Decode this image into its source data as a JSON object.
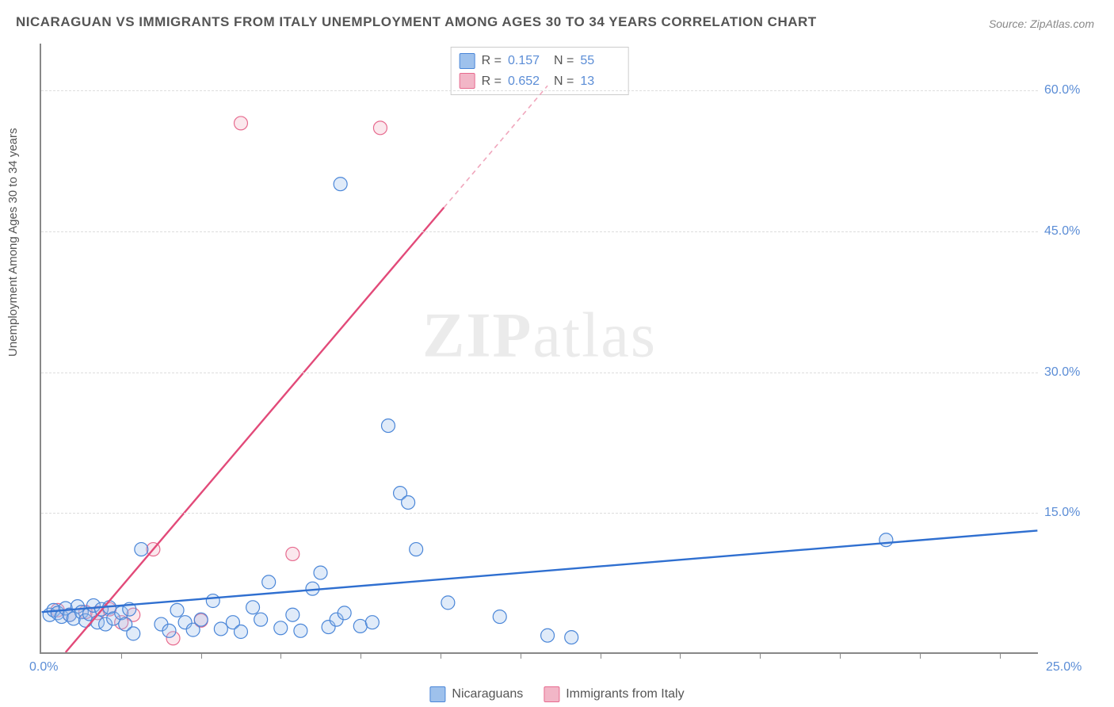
{
  "chart": {
    "type": "scatter",
    "title": "NICARAGUAN VS IMMIGRANTS FROM ITALY UNEMPLOYMENT AMONG AGES 30 TO 34 YEARS CORRELATION CHART",
    "source_label": "Source: ZipAtlas.com",
    "ylabel": "Unemployment Among Ages 30 to 34 years",
    "watermark_bold": "ZIP",
    "watermark_rest": "atlas",
    "background_color": "#ffffff",
    "grid_color": "#dddddd",
    "axis_color": "#888888",
    "xlim": [
      0,
      25
    ],
    "ylim": [
      0,
      65
    ],
    "x_origin_label": "0.0%",
    "x_max_label": "25.0%",
    "xtick_positions": [
      2,
      4,
      6,
      8,
      10,
      12,
      14,
      16,
      18,
      20,
      22,
      24
    ],
    "yticks": [
      {
        "v": 15,
        "label": "15.0%"
      },
      {
        "v": 30,
        "label": "30.0%"
      },
      {
        "v": 45,
        "label": "45.0%"
      },
      {
        "v": 60,
        "label": "60.0%"
      }
    ],
    "marker_radius": 8.5,
    "marker_stroke_width": 1.2,
    "marker_fill_opacity": 0.32,
    "series": {
      "nicaraguans": {
        "label": "Nicaraguans",
        "stat_R_label": "R  =",
        "stat_R_value": "0.157",
        "stat_N_label": "N  =",
        "stat_N_value": "55",
        "color_stroke": "#4a86d8",
        "color_fill": "#9ec1ec",
        "trend": {
          "x1": 0,
          "y1": 4.3,
          "x2": 25,
          "y2": 13.0,
          "width": 2.4,
          "color": "#2f6fd0"
        },
        "points": [
          [
            0.2,
            4.0
          ],
          [
            0.3,
            4.5
          ],
          [
            0.4,
            4.2
          ],
          [
            0.5,
            3.8
          ],
          [
            0.6,
            4.7
          ],
          [
            0.7,
            4.0
          ],
          [
            0.8,
            3.6
          ],
          [
            0.9,
            4.9
          ],
          [
            1.0,
            4.3
          ],
          [
            1.1,
            3.4
          ],
          [
            1.2,
            4.1
          ],
          [
            1.3,
            5.0
          ],
          [
            1.4,
            3.2
          ],
          [
            1.5,
            4.6
          ],
          [
            1.6,
            3.0
          ],
          [
            1.7,
            4.8
          ],
          [
            1.8,
            3.6
          ],
          [
            2.0,
            4.2
          ],
          [
            2.1,
            3.0
          ],
          [
            2.2,
            4.6
          ],
          [
            2.3,
            2.0
          ],
          [
            2.5,
            11.0
          ],
          [
            3.0,
            3.0
          ],
          [
            3.2,
            2.3
          ],
          [
            3.4,
            4.5
          ],
          [
            3.6,
            3.2
          ],
          [
            3.8,
            2.4
          ],
          [
            4.0,
            3.5
          ],
          [
            4.3,
            5.5
          ],
          [
            4.5,
            2.5
          ],
          [
            4.8,
            3.2
          ],
          [
            5.0,
            2.2
          ],
          [
            5.3,
            4.8
          ],
          [
            5.5,
            3.5
          ],
          [
            5.7,
            7.5
          ],
          [
            6.0,
            2.6
          ],
          [
            6.3,
            4.0
          ],
          [
            6.5,
            2.3
          ],
          [
            6.8,
            6.8
          ],
          [
            7.0,
            8.5
          ],
          [
            7.2,
            2.7
          ],
          [
            7.4,
            3.5
          ],
          [
            7.5,
            50.0
          ],
          [
            7.6,
            4.2
          ],
          [
            8.0,
            2.8
          ],
          [
            8.3,
            3.2
          ],
          [
            8.7,
            24.2
          ],
          [
            9.0,
            17.0
          ],
          [
            9.2,
            16.0
          ],
          [
            9.4,
            11.0
          ],
          [
            10.2,
            5.3
          ],
          [
            11.5,
            3.8
          ],
          [
            12.7,
            1.8
          ],
          [
            13.3,
            1.6
          ],
          [
            21.2,
            12.0
          ]
        ]
      },
      "italy": {
        "label": "Immigrants from Italy",
        "stat_R_label": "R  =",
        "stat_R_value": "0.652",
        "stat_N_label": "N  =",
        "stat_N_value": "13",
        "color_stroke": "#e76b8f",
        "color_fill": "#f2b6c7",
        "trend_solid": {
          "x1": 0.6,
          "y1": 0,
          "x2": 10.1,
          "y2": 47.5,
          "width": 2.4,
          "color": "#e24a79"
        },
        "trend_dashed": {
          "x1": 10.1,
          "y1": 47.5,
          "x2": 12.7,
          "y2": 60.5,
          "width": 1.6,
          "color": "#f0a6bc",
          "dash": "6,5"
        },
        "points": [
          [
            0.4,
            4.5
          ],
          [
            0.7,
            4.0
          ],
          [
            1.1,
            4.3
          ],
          [
            1.4,
            4.2
          ],
          [
            1.7,
            4.6
          ],
          [
            2.0,
            3.2
          ],
          [
            2.3,
            4.0
          ],
          [
            2.8,
            11.0
          ],
          [
            3.3,
            1.5
          ],
          [
            4.0,
            3.4
          ],
          [
            5.0,
            56.5
          ],
          [
            6.3,
            10.5
          ],
          [
            8.5,
            56.0
          ]
        ]
      }
    }
  }
}
